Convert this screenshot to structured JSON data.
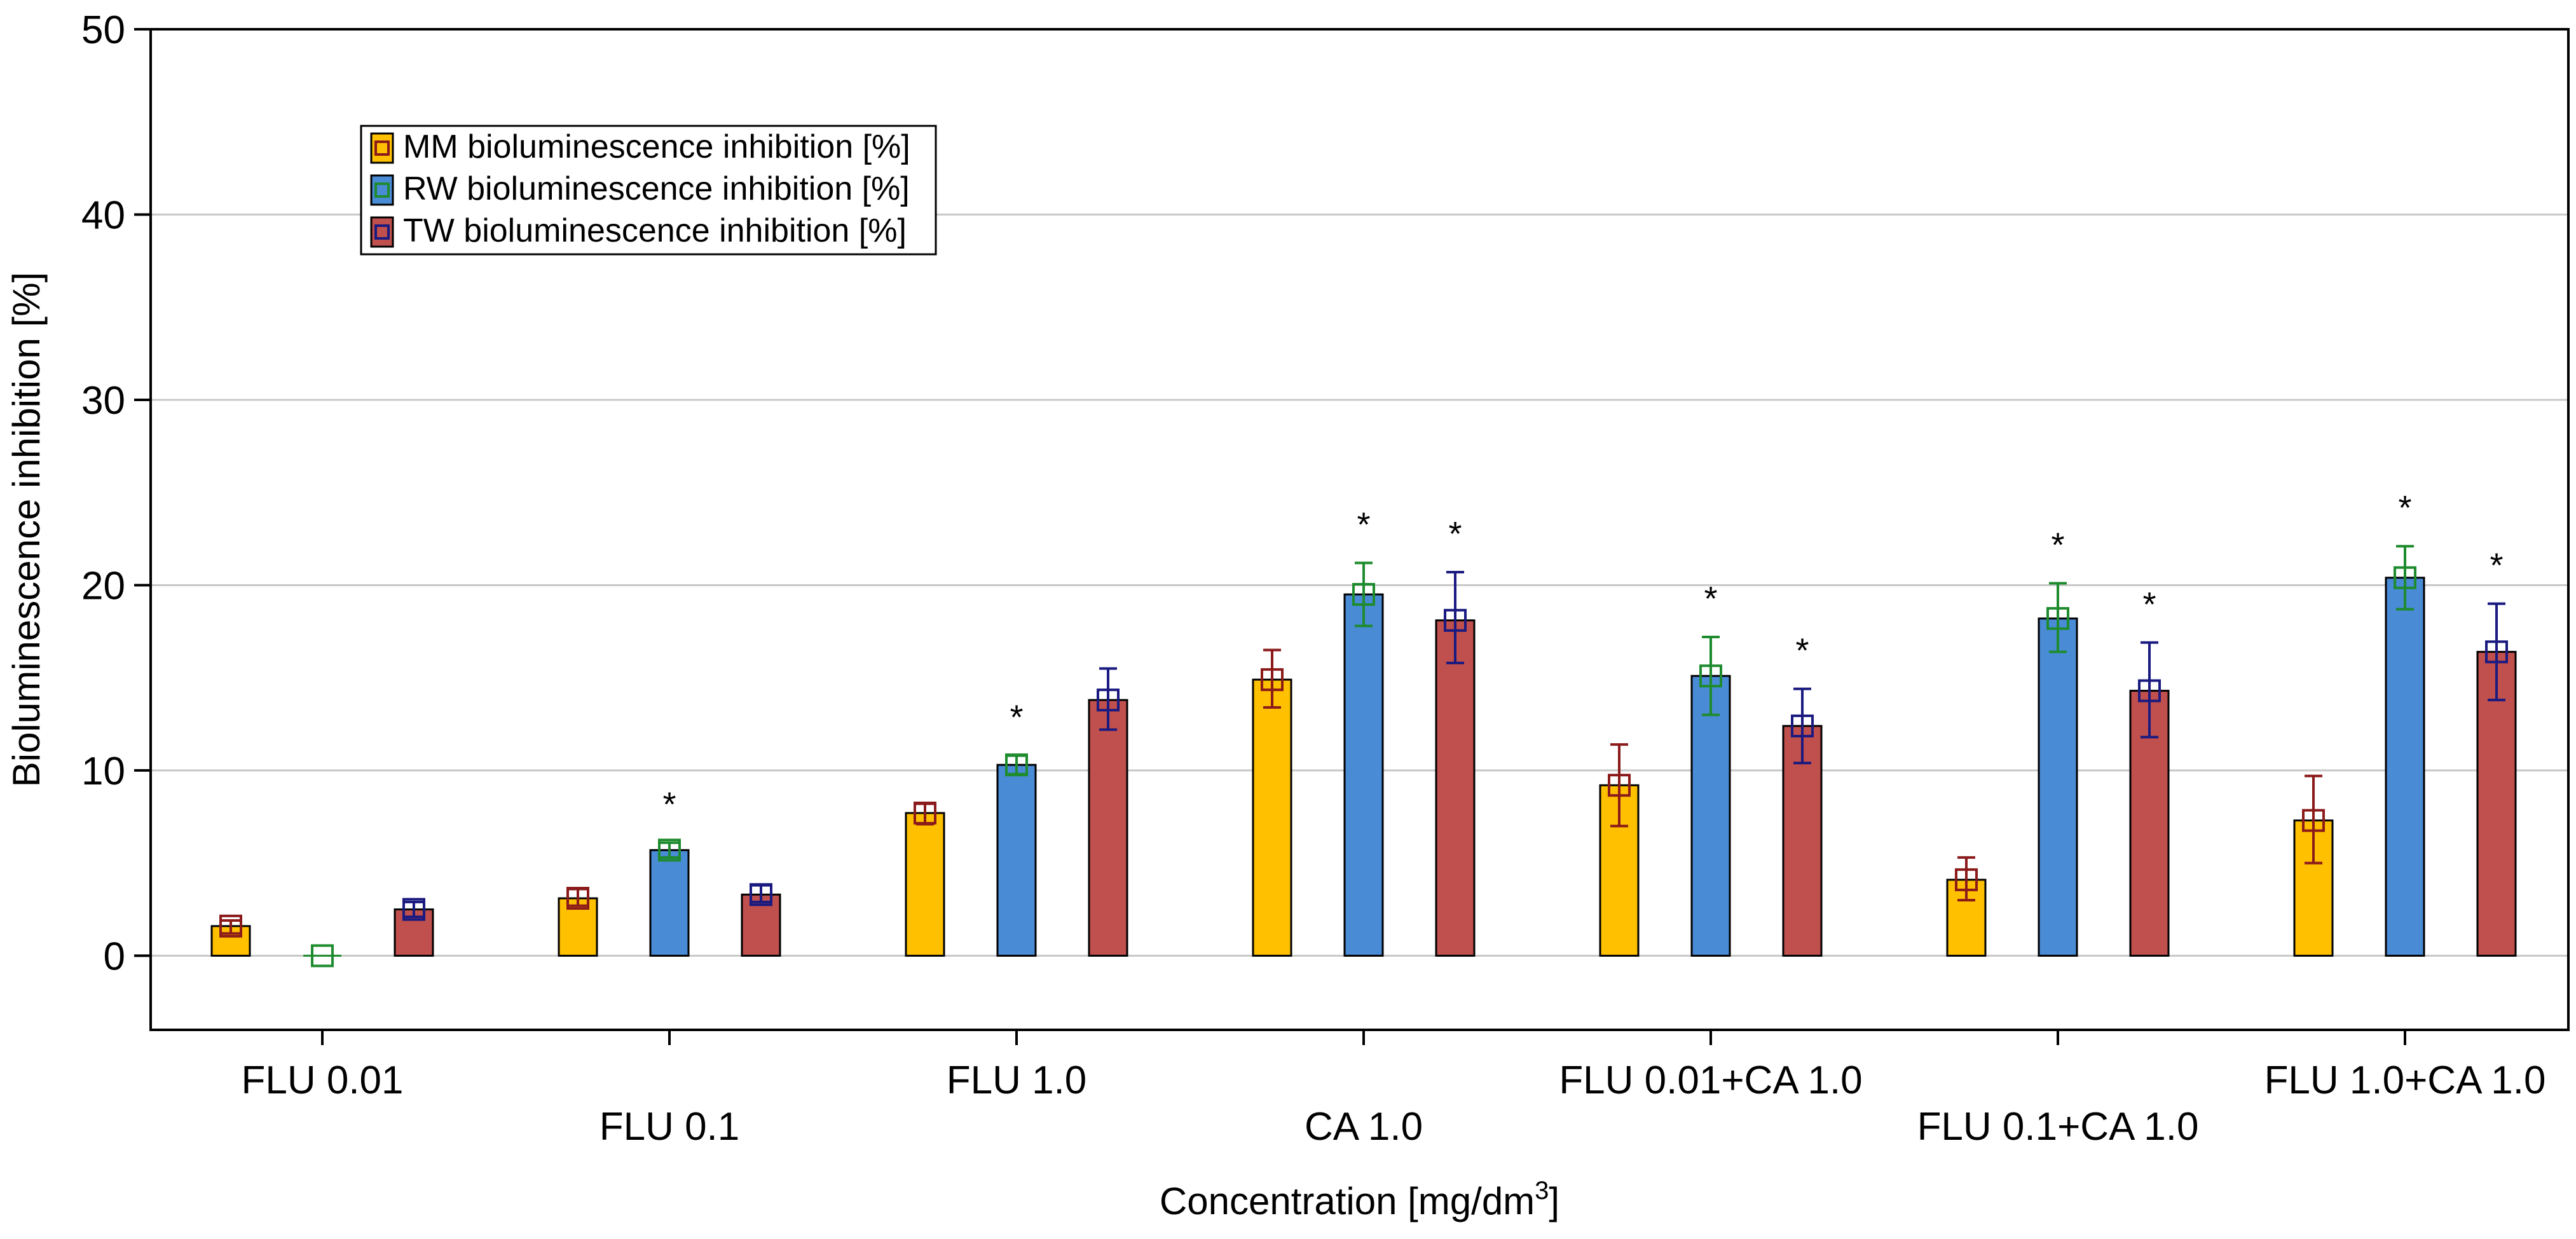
{
  "chart_data": {
    "type": "bar",
    "title": "",
    "xlabel": "Concentration [mg/dm",
    "xlabel_sup": "3",
    "xlabel_end": "]",
    "ylabel": "Bioluminescence inhibition [%]",
    "ylim": [
      -4,
      50
    ],
    "yticks": [
      0,
      10,
      20,
      30,
      40,
      50
    ],
    "grid": true,
    "legend_position": "top-left",
    "categories": [
      "FLU 0.01",
      "FLU 0.1",
      "FLU 1.0",
      "CA 1.0",
      "FLU 0.01+CA 1.0",
      "FLU 0.1+CA 1.0",
      "FLU 1.0+CA 1.0"
    ],
    "series": [
      {
        "name": "MM bioluminescence inhibition [%]",
        "color": "#FFC000",
        "marker_color": "#8B1A1A",
        "values": [
          1.6,
          3.1,
          7.7,
          14.9,
          9.2,
          4.1,
          7.3
        ],
        "err_low": [
          1.2,
          2.7,
          7.1,
          13.4,
          7.0,
          3.0,
          5.0
        ],
        "err_high": [
          1.9,
          3.6,
          8.2,
          16.5,
          11.4,
          5.3,
          9.7
        ],
        "significant": [
          false,
          false,
          false,
          false,
          false,
          false,
          false
        ]
      },
      {
        "name": "RW bioluminescence inhibition [%]",
        "color": "#4A8BD5",
        "marker_color": "#1E8B2E",
        "values": [
          0.0,
          5.7,
          10.3,
          19.5,
          15.1,
          18.2,
          20.4
        ],
        "err_low": [
          0.0,
          5.3,
          9.8,
          17.8,
          13.0,
          16.4,
          18.7
        ],
        "err_high": [
          0.0,
          6.1,
          10.8,
          21.2,
          17.2,
          20.1,
          22.1
        ],
        "significant": [
          false,
          true,
          true,
          true,
          true,
          true,
          true
        ]
      },
      {
        "name": "TW bioluminescence inhibition [%]",
        "color": "#C0504D",
        "marker_color": "#1A1A80",
        "values": [
          2.5,
          3.3,
          13.8,
          18.1,
          12.4,
          14.3,
          16.4
        ],
        "err_low": [
          2.1,
          2.9,
          12.2,
          15.8,
          10.4,
          11.8,
          13.8
        ],
        "err_high": [
          2.9,
          3.8,
          15.5,
          20.7,
          14.4,
          16.9,
          19.0
        ],
        "significant": [
          false,
          false,
          false,
          true,
          true,
          true,
          true
        ]
      }
    ],
    "significance_symbol": "*"
  }
}
